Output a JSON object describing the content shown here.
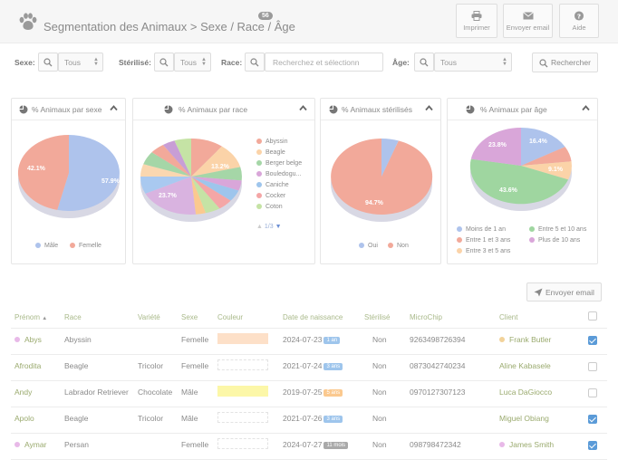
{
  "header": {
    "title": "Segmentation des Animaux > Sexe / Race / Âge",
    "badge": "56",
    "buttons": [
      {
        "label": "Imprimer",
        "icon": "printer-icon"
      },
      {
        "label": "Envoyer email",
        "icon": "envelope-icon"
      },
      {
        "label": "Aide",
        "icon": "help-icon"
      }
    ]
  },
  "filters": {
    "sexe_label": "Sexe:",
    "sexe_value": "Tous",
    "sterilise_label": "Stérilisé:",
    "sterilise_value": "Tous",
    "race_label": "Race:",
    "race_placeholder": "Recherchez et sélectionn",
    "age_label": "Âge:",
    "age_value": "Tous",
    "search_button": "Rechercher"
  },
  "panels": {
    "sexe": {
      "title": "% Animaux par sexe",
      "chart_data": {
        "type": "pie",
        "title": "% Animaux par sexe",
        "categories": [
          "Mâle",
          "Femelle"
        ],
        "values": [
          57.9,
          42.1
        ],
        "colors": [
          "#aec3ec",
          "#f2a99a"
        ],
        "labels": [
          "57.9%",
          "42.1%"
        ]
      }
    },
    "race": {
      "title": "% Animaux par race",
      "legend": [
        "Abyssin",
        "Beagle",
        "Berger belge",
        "Bouledogu...",
        "Caniche",
        "Cocker",
        "Coton"
      ],
      "pager": "1/3",
      "chart_data": {
        "type": "pie",
        "title": "% Animaux par race",
        "categories": [
          "Abyssin",
          "Beagle",
          "Berger belge",
          "Bouledogu...",
          "Caniche",
          "Cocker",
          "Coton"
        ],
        "labels": [
          "13.2%",
          "23.7%"
        ],
        "colors": [
          "#f2a99a",
          "#fbd3a8",
          "#a5d6a7",
          "#d9a6d9",
          "#9ec5ec",
          "#f4a6a6",
          "#c5e3a5"
        ]
      }
    },
    "sterilise": {
      "title": "% Animaux stérilisés",
      "chart_data": {
        "type": "pie",
        "title": "% Animaux stérilisés",
        "categories": [
          "Oui",
          "Non"
        ],
        "values": [
          5.3,
          94.7
        ],
        "colors": [
          "#aec3ec",
          "#f2a99a"
        ],
        "labels": [
          "94.7%"
        ]
      }
    },
    "age": {
      "title": "% Animaux par âge",
      "chart_data": {
        "type": "pie",
        "title": "% Animaux par âge",
        "categories": [
          "Moins de 1 an",
          "Entre 1 et 3 ans",
          "Entre 3 et 5 ans",
          "Entre 5 et 10 ans",
          "Plus de 10 ans"
        ],
        "values": [
          16.4,
          6.5,
          9.1,
          43.6,
          23.8
        ],
        "colors": [
          "#aec3ec",
          "#f2a99a",
          "#fbd3a8",
          "#9fd6a0",
          "#d9a6d9"
        ],
        "labels": [
          "16.4%",
          "9.1%",
          "43.6%",
          "23.8%"
        ]
      }
    }
  },
  "email_button": "Envoyer email",
  "table": {
    "columns": [
      "Prénom",
      "Race",
      "Variété",
      "Sexe",
      "Couleur",
      "Date de naissance",
      "Stérilisé",
      "MicroChip",
      "Client"
    ],
    "rows": [
      {
        "prenom": "Abys",
        "race": "Abyssin",
        "variete": "",
        "sexe": "Femelle",
        "couleur": "#fde0c8",
        "date": "2024-07-23",
        "age": "1 an",
        "age_color": "#9ec5ec",
        "sterilise": "Non",
        "chip": "9263498726394",
        "client": "Frank Butler",
        "client_dot": "#f2d29a",
        "checked": true,
        "prenom_dot": "#e8b9e8"
      },
      {
        "prenom": "Afrodita",
        "race": "Beagle",
        "variete": "Tricolor",
        "sexe": "Femelle",
        "couleur": "",
        "date": "2021-07-24",
        "age": "3 ans",
        "age_color": "#9ec5ec",
        "sterilise": "Non",
        "chip": "0873042740234",
        "client": "Aline Kabasele",
        "client_dot": "",
        "checked": false,
        "prenom_dot": ""
      },
      {
        "prenom": "Andy",
        "race": "Labrador Retriever",
        "variete": "Chocolate",
        "sexe": "Mâle",
        "couleur": "#fcf7a8",
        "date": "2019-07-25",
        "age": "5 ans",
        "age_color": "#fbc98f",
        "sterilise": "Non",
        "chip": "0970127307123",
        "client": "Luca DaGiocco",
        "client_dot": "",
        "checked": false,
        "prenom_dot": ""
      },
      {
        "prenom": "Apolo",
        "race": "Beagle",
        "variete": "Tricolor",
        "sexe": "Mâle",
        "couleur": "",
        "date": "2021-07-26",
        "age": "3 ans",
        "age_color": "#9ec5ec",
        "sterilise": "Non",
        "chip": "",
        "client": "Miguel Obiang",
        "client_dot": "",
        "checked": true,
        "prenom_dot": ""
      },
      {
        "prenom": "Aymar",
        "race": "Persan",
        "variete": "",
        "sexe": "Femelle",
        "couleur": "",
        "date": "2024-07-27",
        "age": "11 mois",
        "age_color": "#a9a9a9",
        "sterilise": "Non",
        "chip": "098798472342",
        "client": "James Smith",
        "client_dot": "#e8b9e8",
        "checked": true,
        "prenom_dot": "#e8b9e8"
      }
    ]
  }
}
